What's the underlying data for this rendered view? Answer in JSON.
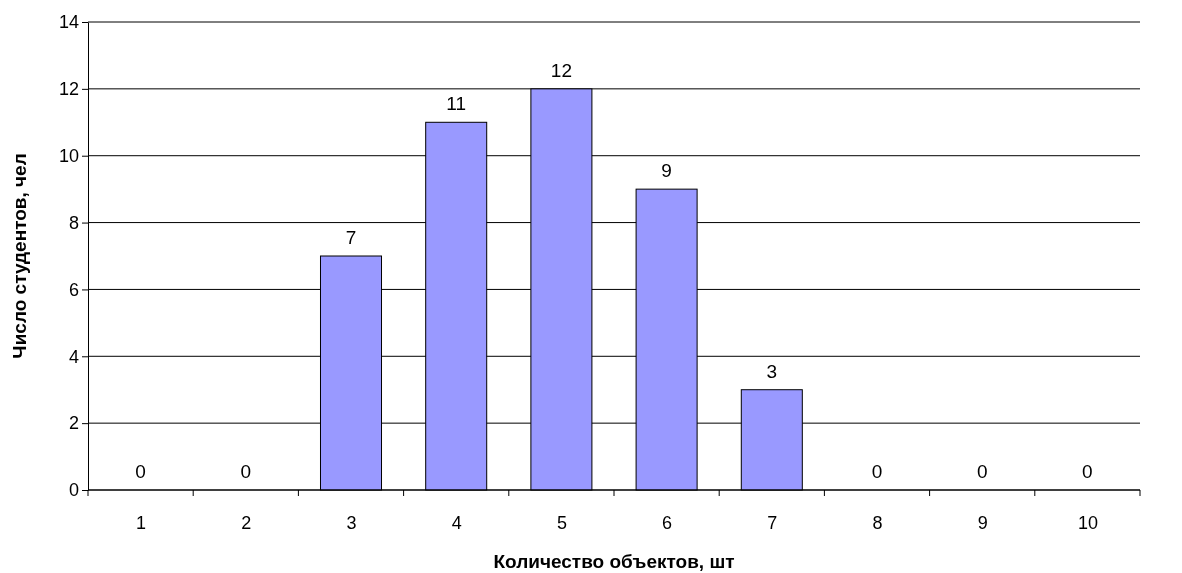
{
  "chart_data": {
    "type": "bar",
    "xlabel": "Количество объектов, шт",
    "ylabel": "Число студентов, чел",
    "categories": [
      "1",
      "2",
      "3",
      "4",
      "5",
      "6",
      "7",
      "8",
      "9",
      "10"
    ],
    "values": [
      0,
      0,
      7,
      11,
      12,
      9,
      3,
      0,
      0,
      0
    ],
    "color": "#9999ff",
    "ylim": [
      0,
      14
    ],
    "yticks": [
      0,
      2,
      4,
      6,
      8,
      10,
      12,
      14
    ],
    "grid": "y",
    "data_labels": true
  }
}
